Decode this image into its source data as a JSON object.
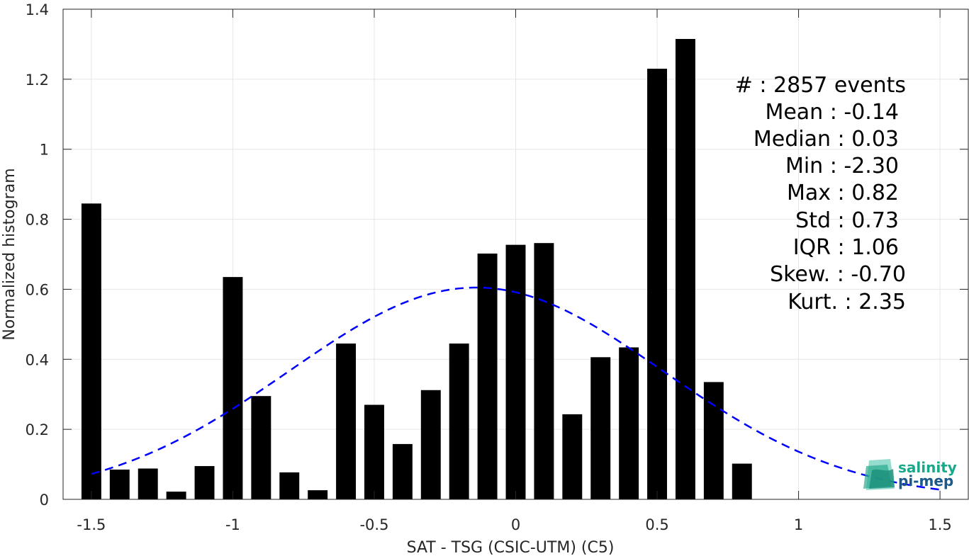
{
  "chart_data": {
    "type": "bar",
    "xlabel": "SAT - TSG (CSIC-UTM) (C5)",
    "ylabel": "Normalized histogram",
    "xlim": [
      -1.6,
      1.6
    ],
    "ylim": [
      0,
      1.4
    ],
    "grid": true,
    "bar_width": 0.07,
    "x_ticks": [
      -1.5,
      -1,
      -0.5,
      0,
      0.5,
      1,
      1.5
    ],
    "x_tick_labels": [
      "-1.5",
      "-1",
      "-0.5",
      "0",
      "0.5",
      "1",
      "1.5"
    ],
    "y_ticks": [
      0,
      0.2,
      0.4,
      0.6,
      0.8,
      1,
      1.2,
      1.4
    ],
    "y_tick_labels": [
      "0",
      "0.2",
      "0.4",
      "0.6",
      "0.8",
      "1",
      "1.2",
      "1.4"
    ],
    "bars": {
      "x": [
        -1.5,
        -1.4,
        -1.3,
        -1.2,
        -1.1,
        -1.0,
        -0.9,
        -0.8,
        -0.7,
        -0.6,
        -0.5,
        -0.4,
        -0.3,
        -0.2,
        -0.1,
        0.0,
        0.1,
        0.2,
        0.3,
        0.4,
        0.5,
        0.6,
        0.7,
        0.8
      ],
      "values": [
        0.845,
        0.085,
        0.088,
        0.022,
        0.095,
        0.635,
        0.295,
        0.077,
        0.026,
        0.445,
        0.27,
        0.158,
        0.312,
        0.445,
        0.702,
        0.727,
        0.732,
        0.243,
        0.406,
        0.434,
        1.23,
        1.315,
        0.335,
        0.102
      ],
      "color": "#000000"
    },
    "fit_curve": {
      "style": "dashed",
      "color": "#0000ff",
      "mean": -0.14,
      "std": 0.66,
      "peak": 0.605,
      "x_range": [
        -1.5,
        1.5
      ]
    },
    "stats_lines": [
      "#  : 2857 events",
      "Mean : -0.14",
      "Median : 0.03",
      "Min : -2.30",
      "Max : 0.82",
      "Std : 0.73",
      "IQR : 1.06",
      "Skew. : -0.70",
      "Kurt. : 2.35"
    ]
  },
  "logo": {
    "line1": "salinity",
    "line2": "pi-mep",
    "color1": "#1aa88a",
    "color2": "#1a5a8a"
  }
}
